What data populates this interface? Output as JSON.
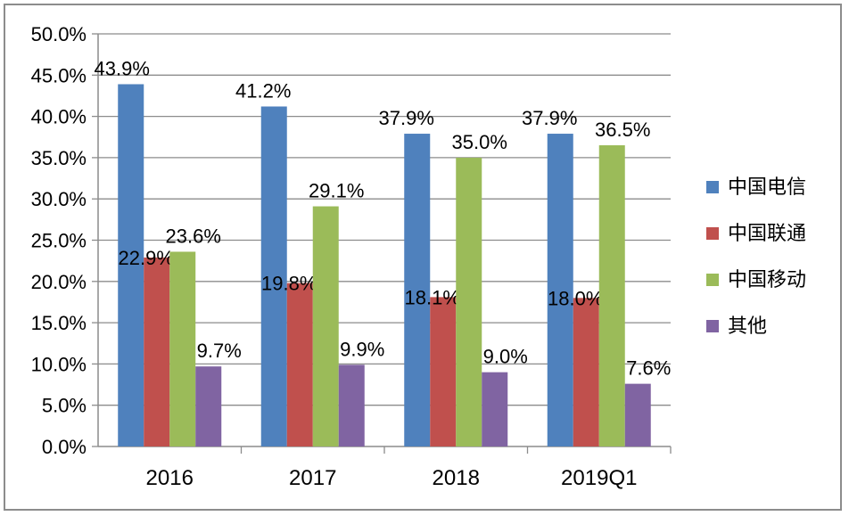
{
  "chart_data": {
    "type": "bar",
    "categories": [
      "2016",
      "2017",
      "2018",
      "2019Q1"
    ],
    "series": [
      {
        "name": "中国电信",
        "color": "#4f81bd",
        "values": [
          43.9,
          41.2,
          37.9,
          37.9
        ],
        "labels": [
          "43.9%",
          "41.2%",
          "37.9%",
          "37.9%"
        ]
      },
      {
        "name": "中国联通",
        "color": "#c0504d",
        "values": [
          22.9,
          19.8,
          18.1,
          18.0
        ],
        "labels": [
          "22.9%",
          "19.8%",
          "18.1%",
          "18.0%"
        ]
      },
      {
        "name": "中国移动",
        "color": "#9bbb59",
        "values": [
          23.6,
          29.1,
          35.0,
          36.5
        ],
        "labels": [
          "23.6%",
          "29.1%",
          "35.0%",
          "36.5%"
        ]
      },
      {
        "name": "其他",
        "color": "#8064a2",
        "values": [
          9.7,
          9.9,
          9.0,
          7.6
        ],
        "labels": [
          "9.7%",
          "9.9%",
          "9.0%",
          "7.6%"
        ]
      }
    ],
    "yticks": [
      "0.0%",
      "5.0%",
      "10.0%",
      "15.0%",
      "20.0%",
      "25.0%",
      "30.0%",
      "35.0%",
      "40.0%",
      "45.0%",
      "50.0%"
    ],
    "ylim": [
      0,
      50
    ],
    "grid": true,
    "legend_position": "right",
    "title": "",
    "xlabel": "",
    "ylabel": ""
  }
}
